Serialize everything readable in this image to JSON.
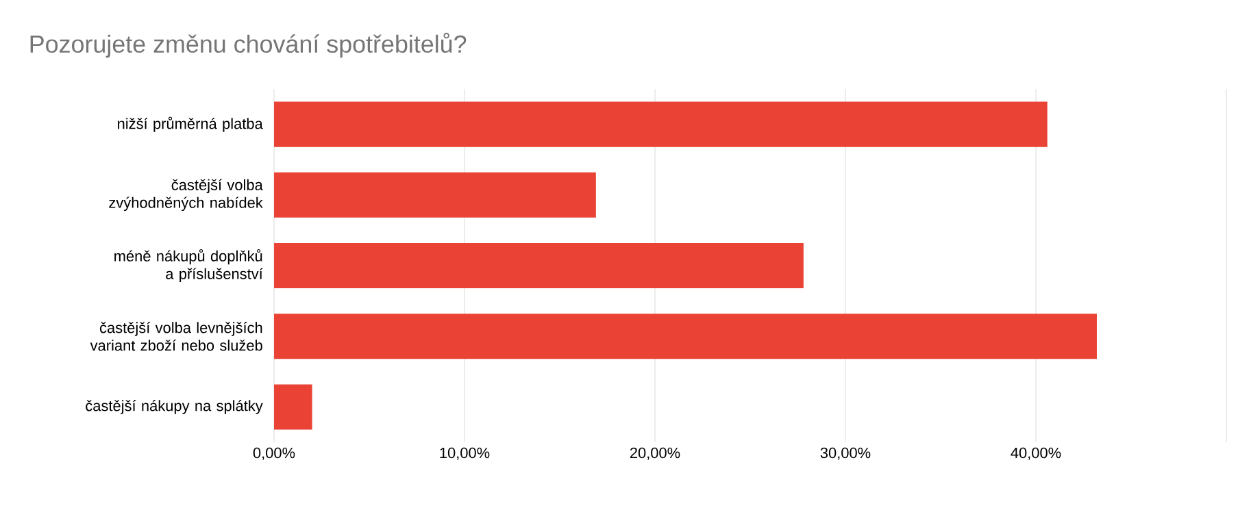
{
  "chart_data": {
    "type": "bar",
    "orientation": "horizontal",
    "title": "Pozorujete změnu chování spotřebitelů?",
    "categories": [
      "nižší průměrná platba",
      "častější volba zvýhodněných nabídek",
      "méně nákupů doplňků a příslušenství",
      "častější volba levnějších variant zboží nebo služeb",
      "častější nákupy na splátky"
    ],
    "values": [
      40.6,
      16.9,
      27.8,
      43.2,
      2.0
    ],
    "color": "#ea4335",
    "xlim": [
      0,
      50
    ],
    "xticks": [
      {
        "value": 0,
        "label": "0,00%"
      },
      {
        "value": 10,
        "label": "10,00%"
      },
      {
        "value": 20,
        "label": "20,00%"
      },
      {
        "value": 30,
        "label": "30,00%"
      },
      {
        "value": 40,
        "label": "40,00%"
      },
      {
        "value": 50,
        "label": null
      }
    ],
    "grid": "x"
  }
}
